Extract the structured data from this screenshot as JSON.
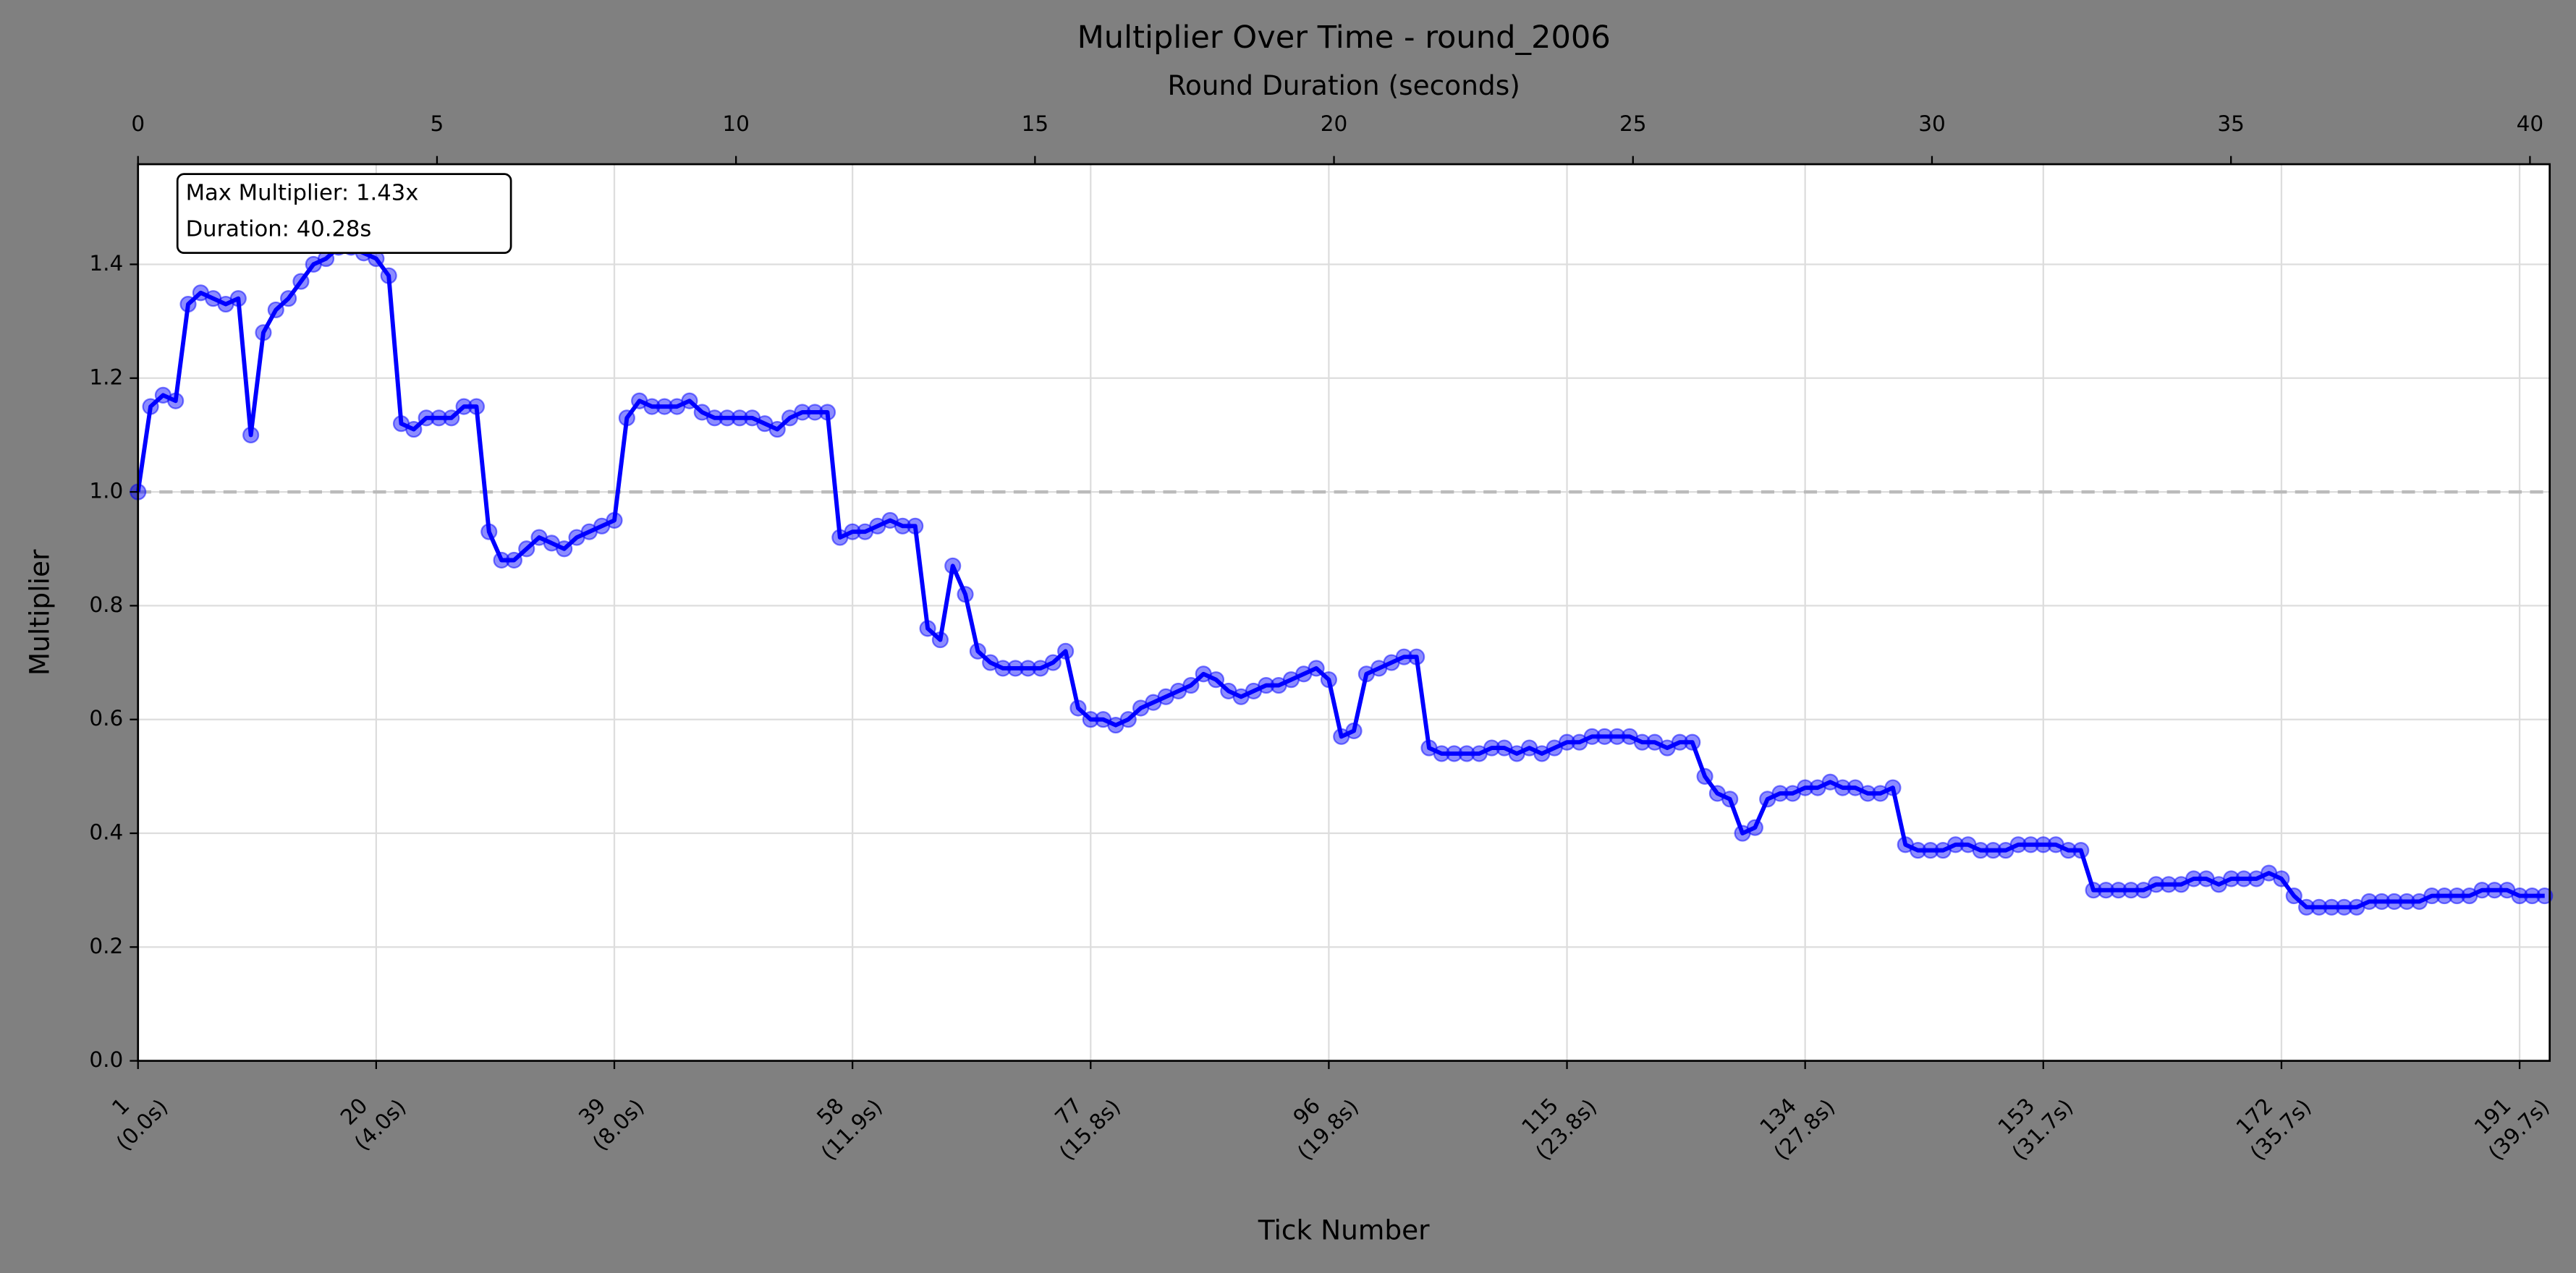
{
  "chart_data": {
    "type": "line",
    "title": "Multiplier Over Time - round_2006",
    "xlabel": "Tick Number",
    "x2label": "Round Duration (seconds)",
    "ylabel": "Multiplier",
    "annotation": [
      "Max Multiplier: 1.43x",
      "Duration: 40.28s"
    ],
    "color": "#0000ff",
    "grid": true,
    "hline": 1,
    "xlim": [
      1,
      193.4
    ],
    "x2lim": [
      0,
      40.33
    ],
    "ylim": [
      0,
      1.576
    ],
    "yticks": [
      {
        "value": 0,
        "label": "0.0"
      },
      0.2,
      0.4,
      0.6,
      0.8,
      {
        "value": 1,
        "label": "1.0"
      },
      1.2,
      1.4
    ],
    "x2ticks": [
      0,
      5,
      10,
      15,
      20,
      25,
      30,
      35,
      40
    ],
    "xticks": [
      {
        "value": 1,
        "label": [
          "1",
          "(0.0s)"
        ]
      },
      {
        "value": 20,
        "label": [
          "20",
          "(4.0s)"
        ]
      },
      {
        "value": 39,
        "label": [
          "39",
          "(8.0s)"
        ]
      },
      {
        "value": 58,
        "label": [
          "58",
          "(11.9s)"
        ]
      },
      {
        "value": 77,
        "label": [
          "77",
          "(15.8s)"
        ]
      },
      {
        "value": 96,
        "label": [
          "96",
          "(19.8s)"
        ]
      },
      {
        "value": 115,
        "label": [
          "115",
          "(23.8s)"
        ]
      },
      {
        "value": 134,
        "label": [
          "134",
          "(27.8s)"
        ]
      },
      {
        "value": 153,
        "label": [
          "153",
          "(31.7s)"
        ]
      },
      {
        "value": 172,
        "label": [
          "172",
          "(35.7s)"
        ]
      },
      {
        "value": 191,
        "label": [
          "191",
          "(39.7s)"
        ]
      }
    ],
    "x": [
      1,
      2,
      3,
      4,
      5,
      6,
      7,
      8,
      9,
      10,
      11,
      12,
      13,
      14,
      15,
      16,
      17,
      18,
      19,
      20,
      21,
      22,
      23,
      24,
      25,
      26,
      27,
      28,
      29,
      30,
      31,
      32,
      33,
      34,
      35,
      36,
      37,
      38,
      39,
      40,
      41,
      42,
      43,
      44,
      45,
      46,
      47,
      48,
      49,
      50,
      51,
      52,
      53,
      54,
      55,
      56,
      57,
      58,
      59,
      60,
      61,
      62,
      63,
      64,
      65,
      66,
      67,
      68,
      69,
      70,
      71,
      72,
      73,
      74,
      75,
      76,
      77,
      78,
      79,
      80,
      81,
      82,
      83,
      84,
      85,
      86,
      87,
      88,
      89,
      90,
      91,
      92,
      93,
      94,
      95,
      96,
      97,
      98,
      99,
      100,
      101,
      102,
      103,
      104,
      105,
      106,
      107,
      108,
      109,
      110,
      111,
      112,
      113,
      114,
      115,
      116,
      117,
      118,
      119,
      120,
      121,
      122,
      123,
      124,
      125,
      126,
      127,
      128,
      129,
      130,
      131,
      132,
      133,
      134,
      135,
      136,
      137,
      138,
      139,
      140,
      141,
      142,
      143,
      144,
      145,
      146,
      147,
      148,
      149,
      150,
      151,
      152,
      153,
      154,
      155,
      156,
      157,
      158,
      159,
      160,
      161,
      162,
      163,
      164,
      165,
      166,
      167,
      168,
      169,
      170,
      171,
      172,
      173,
      174,
      175,
      176,
      177,
      178,
      179,
      180,
      181,
      182,
      183,
      184,
      185,
      186,
      187,
      188,
      189,
      190,
      191,
      192,
      193
    ],
    "values": [
      1.0,
      1.15,
      1.17,
      1.16,
      1.33,
      1.35,
      1.34,
      1.33,
      1.34,
      1.1,
      1.28,
      1.32,
      1.34,
      1.37,
      1.4,
      1.41,
      1.43,
      1.43,
      1.42,
      1.41,
      1.38,
      1.12,
      1.11,
      1.13,
      1.13,
      1.13,
      1.15,
      1.15,
      0.93,
      0.88,
      0.88,
      0.9,
      0.92,
      0.91,
      0.9,
      0.92,
      0.93,
      0.94,
      0.95,
      1.13,
      1.16,
      1.15,
      1.15,
      1.15,
      1.16,
      1.14,
      1.13,
      1.13,
      1.13,
      1.13,
      1.12,
      1.11,
      1.13,
      1.14,
      1.14,
      1.14,
      0.92,
      0.93,
      0.93,
      0.94,
      0.95,
      0.94,
      0.94,
      0.76,
      0.74,
      0.87,
      0.82,
      0.72,
      0.7,
      0.69,
      0.69,
      0.69,
      0.69,
      0.7,
      0.72,
      0.62,
      0.6,
      0.6,
      0.59,
      0.6,
      0.62,
      0.63,
      0.64,
      0.65,
      0.66,
      0.68,
      0.67,
      0.65,
      0.64,
      0.65,
      0.66,
      0.66,
      0.67,
      0.68,
      0.69,
      0.67,
      0.57,
      0.58,
      0.68,
      0.69,
      0.7,
      0.71,
      0.71,
      0.55,
      0.54,
      0.54,
      0.54,
      0.54,
      0.55,
      0.55,
      0.54,
      0.55,
      0.54,
      0.55,
      0.56,
      0.56,
      0.57,
      0.57,
      0.57,
      0.57,
      0.56,
      0.56,
      0.55,
      0.56,
      0.56,
      0.5,
      0.47,
      0.46,
      0.4,
      0.41,
      0.46,
      0.47,
      0.47,
      0.48,
      0.48,
      0.49,
      0.48,
      0.48,
      0.47,
      0.47,
      0.48,
      0.38,
      0.37,
      0.37,
      0.37,
      0.38,
      0.38,
      0.37,
      0.37,
      0.37,
      0.38,
      0.38,
      0.38,
      0.38,
      0.37,
      0.37,
      0.3,
      0.3,
      0.3,
      0.3,
      0.3,
      0.31,
      0.31,
      0.31,
      0.32,
      0.32,
      0.31,
      0.32,
      0.32,
      0.32,
      0.33,
      0.32,
      0.29,
      0.27,
      0.27,
      0.27,
      0.27,
      0.27,
      0.28,
      0.28,
      0.28,
      0.28,
      0.28,
      0.29,
      0.29,
      0.29,
      0.29,
      0.3,
      0.3,
      0.3,
      0.29,
      0.29,
      0.29
    ]
  }
}
